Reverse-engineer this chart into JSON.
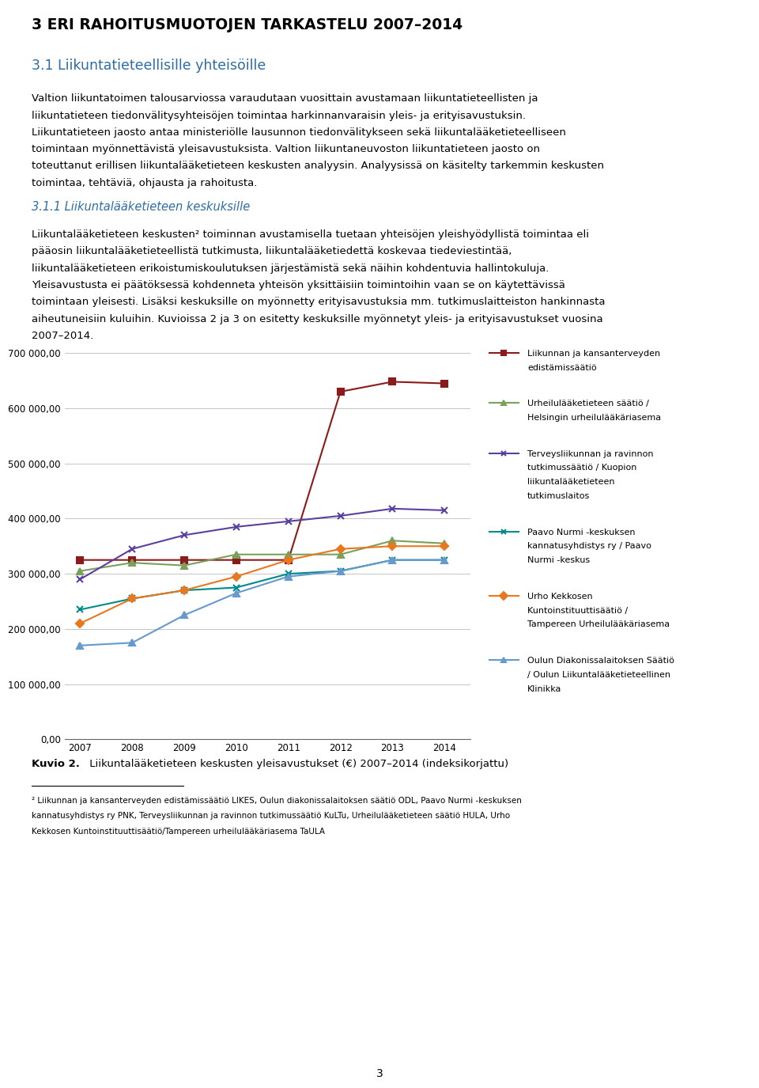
{
  "years": [
    2007,
    2008,
    2009,
    2010,
    2011,
    2012,
    2013,
    2014
  ],
  "series": [
    {
      "label": "Liikunnan ja kansanterveyden\nedistämissäätiö",
      "color": "#8B1A1A",
      "marker": "s",
      "values": [
        325000,
        325000,
        325000,
        325000,
        325000,
        630000,
        648000,
        645000
      ]
    },
    {
      "label": "Urheilulääketieteen säätiö /\nHelsingin urheilulääkäriasema",
      "color": "#7BA05B",
      "marker": "^",
      "values": [
        305000,
        320000,
        315000,
        335000,
        335000,
        335000,
        360000,
        355000
      ]
    },
    {
      "label": "Terveysliikunnan ja ravinnon\ntutkimussäätiö / Kuopion\nliikuntalääketieteen\ntutkimuslaitos",
      "color": "#5B3FA0",
      "marker": "x",
      "values": [
        290000,
        345000,
        370000,
        385000,
        395000,
        405000,
        418000,
        415000
      ]
    },
    {
      "label": "Paavo Nurmi -keskuksen\nkannatusyhdistys ry / Paavo\nNurmi -keskus",
      "color": "#008B8B",
      "marker": "x",
      "values": [
        235000,
        255000,
        270000,
        275000,
        300000,
        305000,
        325000,
        325000
      ]
    },
    {
      "label": "Urho Kekkosen\nKuntoinstituuttisäätiö /\nTampereen Urheilulääkäriasema",
      "color": "#E87820",
      "marker": "D",
      "values": [
        210000,
        255000,
        270000,
        295000,
        325000,
        345000,
        350000,
        350000
      ]
    },
    {
      "label": "Oulun Diakonissalaitoksen Säätiö\n/ Oulun Liikuntalääketieteellinen\nKlinikka",
      "color": "#6699CC",
      "marker": "^",
      "values": [
        170000,
        175000,
        225000,
        265000,
        295000,
        305000,
        325000,
        325000
      ]
    }
  ],
  "ylim": [
    0,
    700000
  ],
  "yticks": [
    0,
    100000,
    200000,
    300000,
    400000,
    500000,
    600000,
    700000
  ],
  "ytick_labels": [
    "0,00",
    "100 000,00",
    "200 000,00",
    "300 000,00",
    "400 000,00",
    "500 000,00",
    "600 000,00",
    "700 000,00"
  ],
  "heading1": "3 ERI RAHOITUSMUOTOJEN TARKASTELU 2007–2014",
  "heading2": "3.1 Liikuntatieteellisille yhteisöille",
  "heading3": "3.1.1 Liikuntalääketieteen keskuksille",
  "paragraph1_lines": [
    "Valtion liikuntatoimen talousarviossa varaudutaan vuosittain avustamaan liikuntatieteellisten ja",
    "liikuntatieteen tiedonvälitysyhteisöjen toimintaa harkinnanvaraisin yleis- ja erityisavustuksin.",
    "Liikuntatieteen jaosto antaa ministeriölle lausunnon tiedonvälitykseen sekä liikuntalääketieteelliseen",
    "toimintaan myönnettävistä yleisavustuksista. Valtion liikuntaneuvoston liikuntatieteen jaosto on",
    "toteuttanut erillisen liikuntalääketieteen keskusten analyysin. Analyysissä on käsitelty tarkemmin keskusten",
    "toimintaa, tehtäviä, ohjausta ja rahoitusta."
  ],
  "paragraph2_lines": [
    "Liikuntalääketieteen keskusten² toiminnan avustamisella tuetaan yhteisöjen yleishyödyllistä toimintaa eli",
    "pääosin liikuntalääketieteellistä tutkimusta, liikuntalääketiedettä koskevaa tiedeviestintää,",
    "liikuntalääketieteen erikoistumiskoulutuksen järjestämistä sekä näihin kohdentuvia hallintokuluja.",
    "Yleisavustusta ei päätöksessä kohdenneta yhteisön yksittäisiin toimintoihin vaan se on käytettävissä",
    "toimintaan yleisesti. Lisäksi keskuksille on myönnetty erityisavustuksia mm. tutkimuslaitteiston hankinnasta",
    "aiheutuneisiin kuluihin. Kuvioissa 2 ja 3 on esitetty keskuksille myönnetyt yleis- ja erityisavustukset vuosina",
    "2007–2014."
  ],
  "caption_bold": "Kuvio 2.",
  "caption_normal": " Liikuntalääketieteen keskusten yleisavustukset (€) 2007–2014 (indeksikorjattu)",
  "footnote_lines": [
    "² Liikunnan ja kansanterveyden edistämissäätiö LIKES, Oulun diakonissalaitoksen säätiö ODL, Paavo Nurmi -keskuksen",
    "kannatusyhdistys ry PNK, Terveysliikunnan ja ravinnon tutkimussäätiö KuLTu, Urheilulääketieteen säätiö HULA, Urho",
    "Kekkosen Kuntoinstituuttisäätiö/Tampereen urheilulääkäriasema TaULA"
  ],
  "page_number": "3",
  "background_color": "#FFFFFF",
  "text_color": "#000000",
  "heading1_color": "#000000",
  "heading2_color": "#2E6DA4",
  "heading3_color": "#2E6DA4",
  "grid_color": "#BBBBBB",
  "marker_styles": [
    "s",
    "^",
    "x",
    "x",
    "D",
    "^"
  ]
}
